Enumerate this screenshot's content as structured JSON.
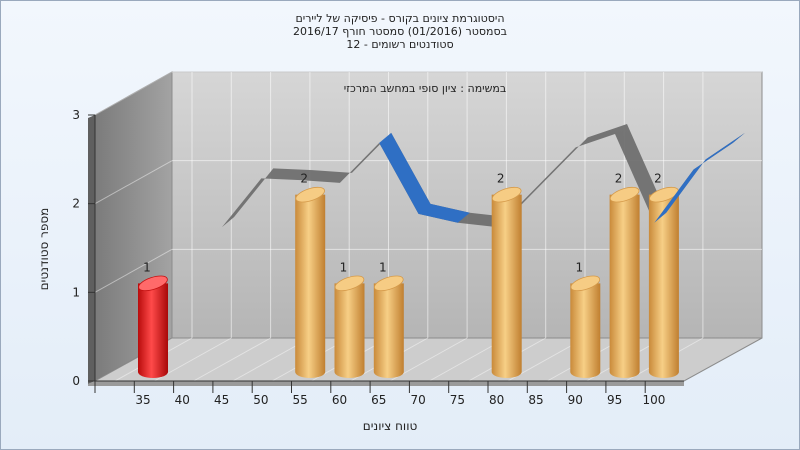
{
  "chart_data": {
    "type": "bar",
    "title": [
      "היסטוגרמת ציונים בקורס - פיסיקה של ליירים",
      "בסמסטר  (01/2016)  סמסטר חורף 2016/17",
      "סטודנטים רשומים - 12"
    ],
    "annotation": "במשימה : ציון סופי במחשב המרכזי",
    "xlabel": "טווח ציונים",
    "ylabel": "מספר סטודנטים",
    "categories": [
      "35",
      "40",
      "45",
      "50",
      "55",
      "60",
      "65",
      "70",
      "75",
      "80",
      "85",
      "90",
      "95",
      "100"
    ],
    "bars": [
      {
        "x": 35,
        "value": 1,
        "label": "1",
        "highlight": true
      },
      {
        "x": 55,
        "value": 2,
        "label": "2"
      },
      {
        "x": 60,
        "value": 1,
        "label": "1"
      },
      {
        "x": 65,
        "value": 1,
        "label": "1"
      },
      {
        "x": 80,
        "value": 2,
        "label": "2"
      },
      {
        "x": 90,
        "value": 1,
        "label": "1"
      },
      {
        "x": 95,
        "value": 2,
        "label": "2"
      },
      {
        "x": 100,
        "value": 2,
        "label": "2"
      }
    ],
    "curve": {
      "x": [
        35,
        40,
        45,
        50,
        55,
        60,
        65,
        70,
        75,
        80,
        85,
        90,
        95,
        100
      ],
      "y": [
        1.25,
        1.8,
        1.78,
        1.75,
        2.2,
        1.4,
        1.3,
        1.25,
        1.7,
        2.15,
        2.3,
        1.3,
        1.9,
        2.2
      ]
    },
    "ylim": [
      0,
      3
    ],
    "yticks": [
      0,
      1,
      2,
      3
    ],
    "grid": true,
    "colors": {
      "bar": "#e8a84f",
      "bar_highlight": "#e01818",
      "curve_front": "#2f6fc4",
      "curve_back": "#6a6a6a",
      "wall": "#bdbdbd",
      "side_wall": "#8e8e8e",
      "floor": "#cfcfcf"
    }
  }
}
